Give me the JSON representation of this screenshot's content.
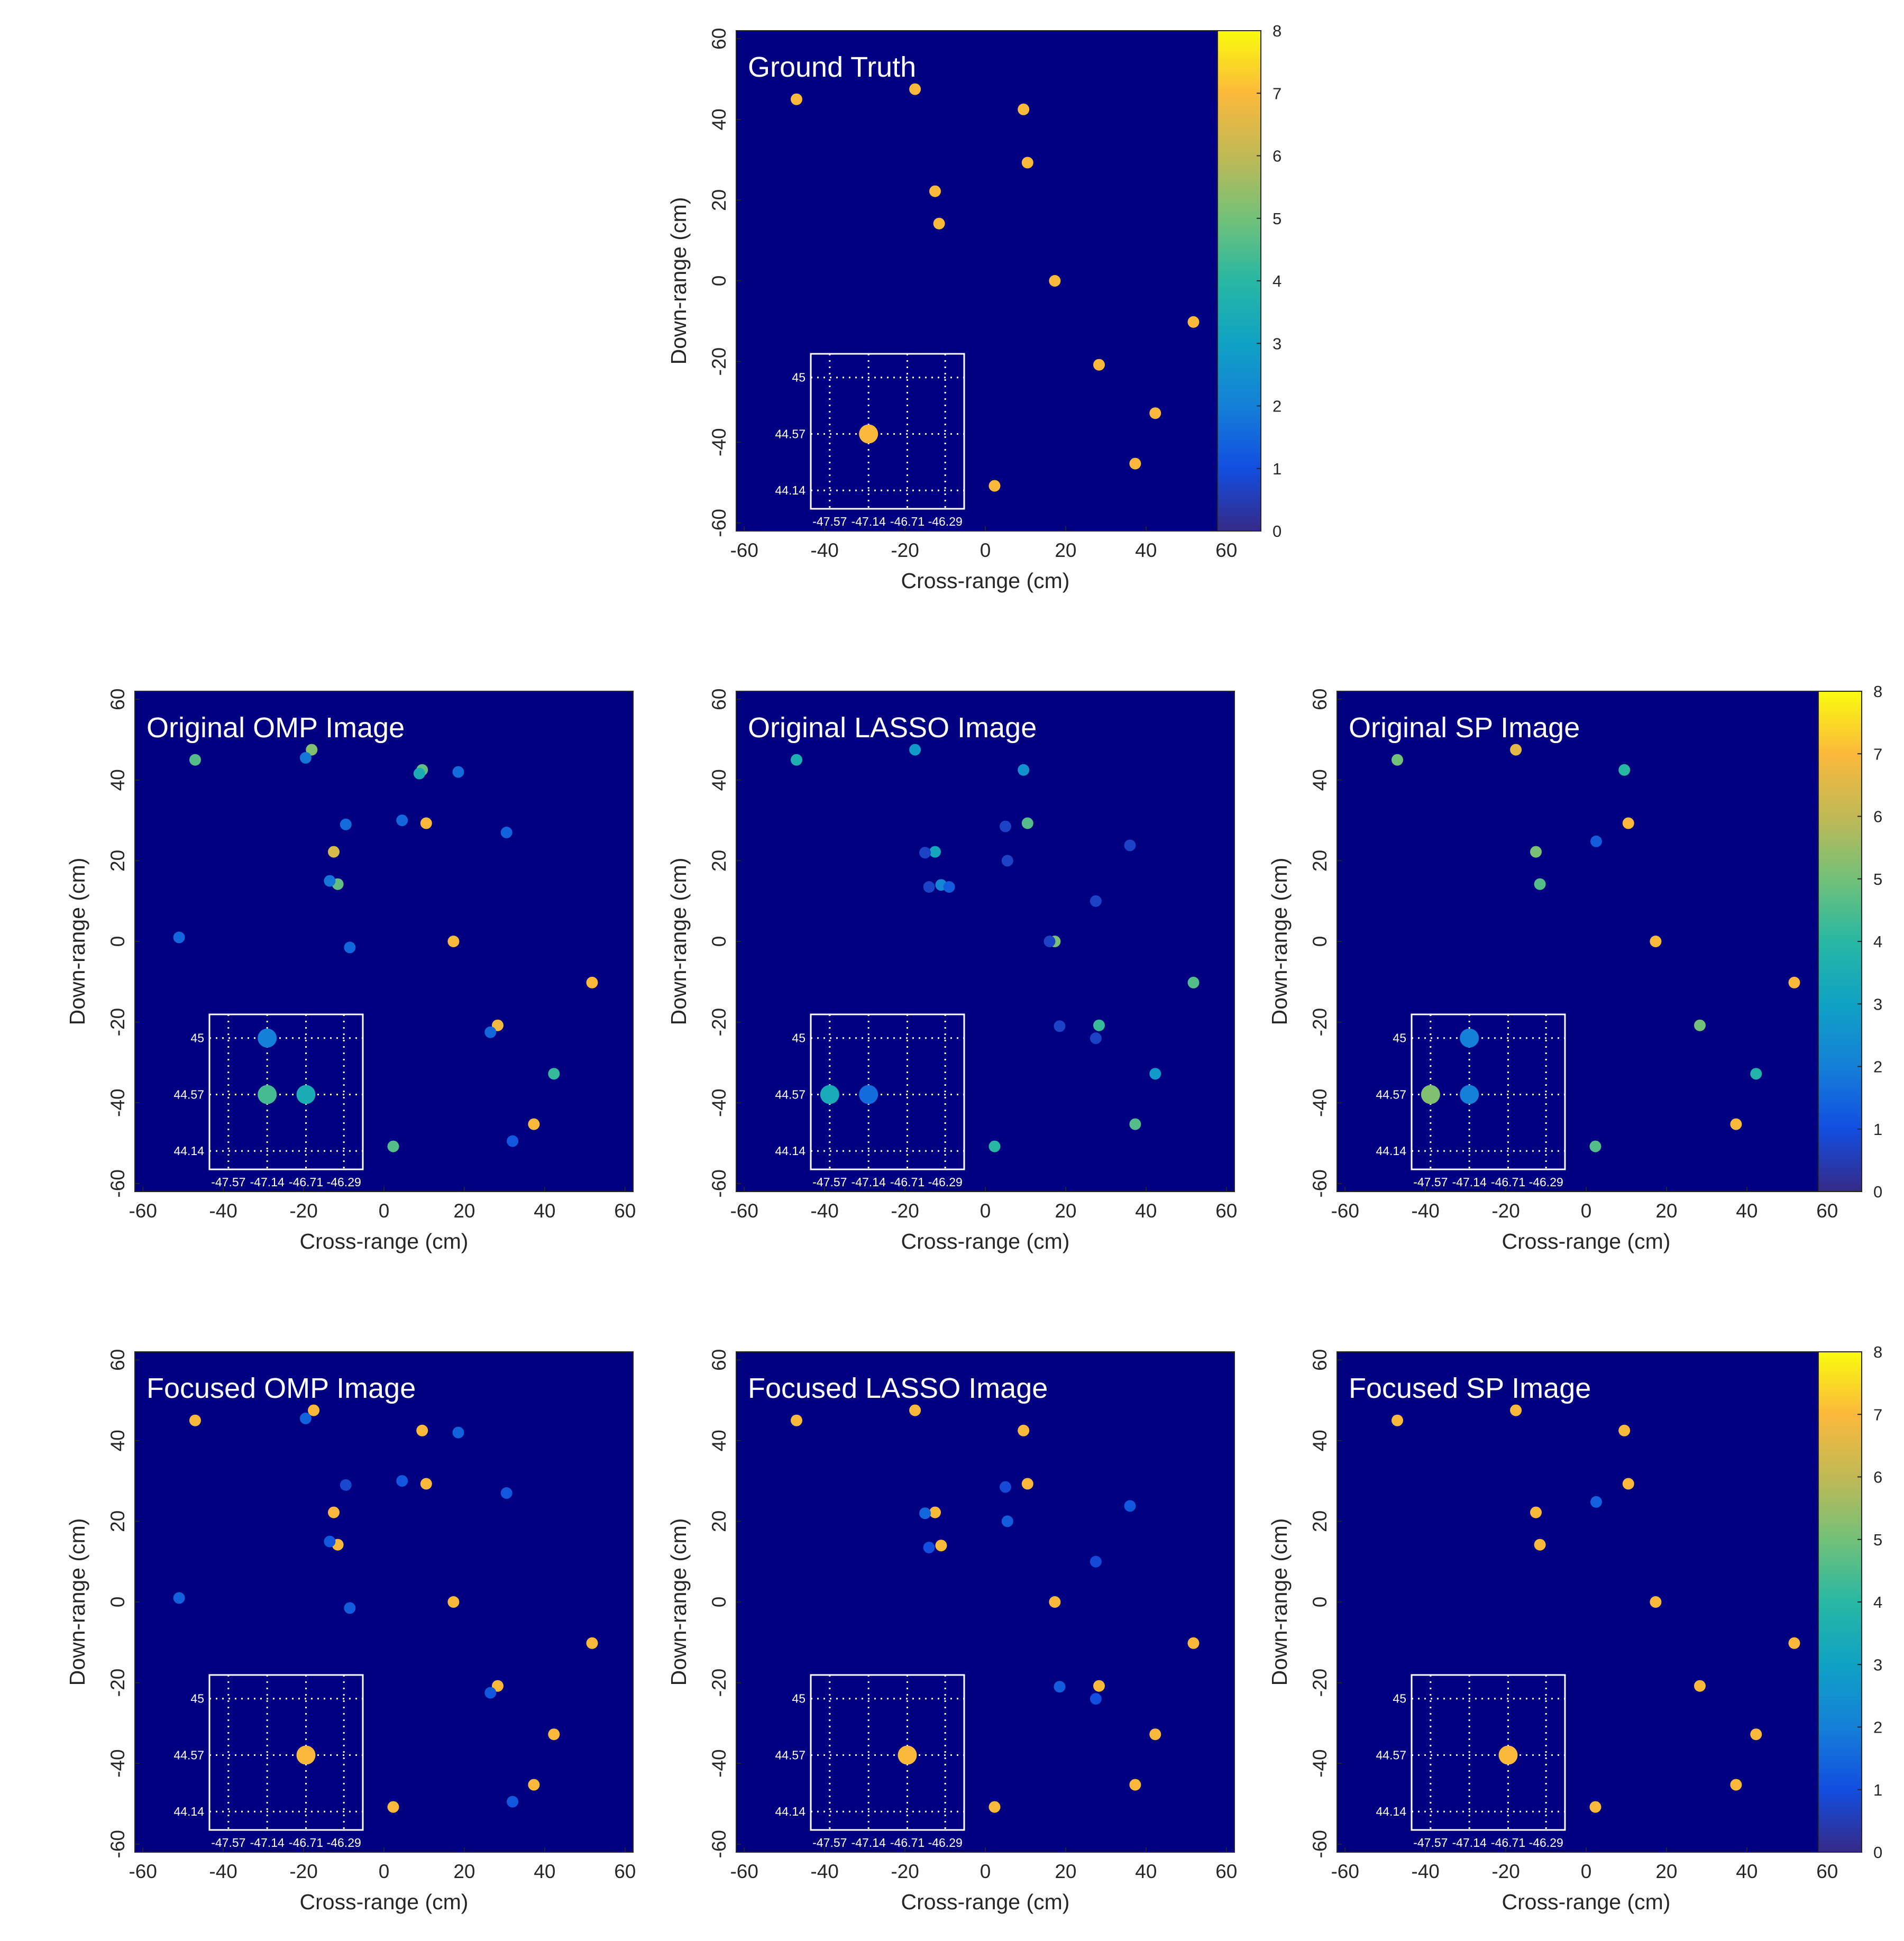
{
  "chart_data": {
    "type": "scatter",
    "xlabel": "Cross-range (cm)",
    "ylabel": "Down-range (cm)",
    "xlim": [
      -62,
      62
    ],
    "ylim": [
      -62,
      62
    ],
    "xticks": [
      "-60",
      "-40",
      "-20",
      "0",
      "20",
      "40",
      "60"
    ],
    "yticks": [
      "-60",
      "-40",
      "-20",
      "0",
      "20",
      "40",
      "60"
    ],
    "colorbar": {
      "range": [
        0,
        8
      ],
      "ticks": [
        "0",
        "1",
        "2",
        "3",
        "4",
        "5",
        "6",
        "7",
        "8"
      ],
      "colormap": "parula"
    },
    "inset": {
      "xticks": [
        "-47.57",
        "-47.14",
        "-46.71",
        "-46.29"
      ],
      "yticks": [
        "45",
        "44.57",
        "44.14"
      ],
      "xlim": [
        -47.78,
        -46.08
      ],
      "ylim": [
        44.0,
        45.18
      ]
    },
    "panels": [
      {
        "title": "Ground Truth",
        "points": [
          [
            -47,
            45,
            7
          ],
          [
            -17.5,
            47.5,
            7
          ],
          [
            9.5,
            42.5,
            7
          ],
          [
            10.5,
            29.3,
            7
          ],
          [
            -12.5,
            22.2,
            7
          ],
          [
            -11.5,
            14.2,
            7
          ],
          [
            17.3,
            0,
            7
          ],
          [
            51.8,
            -10.2,
            7
          ],
          [
            28.3,
            -20.8,
            7
          ],
          [
            42.3,
            -32.8,
            7
          ],
          [
            37.3,
            -45.3,
            7
          ],
          [
            2.3,
            -50.8,
            7
          ]
        ],
        "inset_points": [
          [
            -47.14,
            44.57,
            7
          ]
        ]
      },
      {
        "title": "Original OMP Image",
        "points": [
          [
            -47,
            45,
            4.6
          ],
          [
            -18,
            47.5,
            5.2
          ],
          [
            -19.5,
            45.5,
            1.8
          ],
          [
            9.5,
            42.5,
            4.8
          ],
          [
            8.8,
            41.6,
            3.5
          ],
          [
            18.5,
            42,
            1.6
          ],
          [
            -9.5,
            29,
            1.6
          ],
          [
            4.5,
            30,
            1.5
          ],
          [
            10.5,
            29.3,
            7
          ],
          [
            30.5,
            27,
            1.4
          ],
          [
            -12.5,
            22.2,
            6.4
          ],
          [
            -11.5,
            14.2,
            4.8
          ],
          [
            -13.5,
            15,
            1.8
          ],
          [
            -51,
            1,
            1.5
          ],
          [
            -8.5,
            -1.5,
            1.5
          ],
          [
            17.3,
            0,
            7
          ],
          [
            51.8,
            -10.2,
            7
          ],
          [
            28.3,
            -20.8,
            6.8
          ],
          [
            26.5,
            -22.5,
            1.5
          ],
          [
            42.3,
            -32.8,
            4.2
          ],
          [
            37.3,
            -45.3,
            7
          ],
          [
            2.3,
            -50.8,
            4.6
          ],
          [
            32,
            -49.5,
            1.2
          ]
        ],
        "inset_points": [
          [
            -47.14,
            45,
            2.0
          ],
          [
            -47.14,
            44.57,
            4.4
          ],
          [
            -46.71,
            44.57,
            3.5
          ]
        ]
      },
      {
        "title": "Original LASSO Image",
        "points": [
          [
            -47,
            45,
            3.6
          ],
          [
            -17.5,
            47.5,
            2.8
          ],
          [
            9.5,
            42.5,
            2.5
          ],
          [
            10.5,
            29.3,
            4.6
          ],
          [
            5,
            28.5,
            0.7
          ],
          [
            36,
            23.8,
            0.7
          ],
          [
            -12.5,
            22.2,
            3.2
          ],
          [
            -15,
            22,
            0.7
          ],
          [
            5.5,
            20,
            0.7
          ],
          [
            -11,
            14,
            2.2
          ],
          [
            -14,
            13.5,
            0.7
          ],
          [
            -9,
            13.5,
            1.3
          ],
          [
            27.5,
            10,
            0.7
          ],
          [
            17.3,
            0,
            5.1
          ],
          [
            16,
            0,
            0.7
          ],
          [
            51.8,
            -10.2,
            4.6
          ],
          [
            18.5,
            -21,
            0.7
          ],
          [
            28.3,
            -20.8,
            4.2
          ],
          [
            27.5,
            -24,
            0.7
          ],
          [
            42.3,
            -32.8,
            2.8
          ],
          [
            37.3,
            -45.3,
            4.6
          ],
          [
            2.3,
            -50.8,
            4.0
          ]
        ],
        "inset_points": [
          [
            -47.57,
            44.57,
            3.4
          ],
          [
            -47.14,
            44.57,
            1.6
          ]
        ]
      },
      {
        "title": "Original SP Image",
        "points": [
          [
            -47,
            45,
            5.0
          ],
          [
            -17.5,
            47.5,
            6.6
          ],
          [
            9.5,
            42.5,
            4.0
          ],
          [
            10.5,
            29.3,
            7
          ],
          [
            2.5,
            24.8,
            1.3
          ],
          [
            -12.5,
            22.2,
            5.1
          ],
          [
            -11.5,
            14.2,
            4.6
          ],
          [
            17.3,
            0,
            7
          ],
          [
            51.8,
            -10.2,
            7
          ],
          [
            28.3,
            -20.8,
            5.0
          ],
          [
            42.3,
            -32.8,
            3.8
          ],
          [
            37.3,
            -45.3,
            7
          ],
          [
            2.3,
            -50.8,
            4.6
          ]
        ],
        "inset_points": [
          [
            -47.14,
            45,
            2.0
          ],
          [
            -47.57,
            44.57,
            5.2
          ],
          [
            -47.14,
            44.57,
            2.0
          ]
        ]
      },
      {
        "title": "Focused OMP Image",
        "points": [
          [
            -47,
            45,
            7
          ],
          [
            -17.5,
            47.5,
            7
          ],
          [
            -19.5,
            45.5,
            1.4
          ],
          [
            9.5,
            42.5,
            7
          ],
          [
            18.5,
            42,
            1.4
          ],
          [
            -9.5,
            29,
            0.8
          ],
          [
            4.5,
            30,
            1.2
          ],
          [
            10.5,
            29.3,
            7
          ],
          [
            30.5,
            27,
            1.2
          ],
          [
            -12.5,
            22.2,
            7
          ],
          [
            -11.5,
            14.2,
            7
          ],
          [
            -13.5,
            15,
            1.2
          ],
          [
            -51,
            1,
            1.4
          ],
          [
            -8.5,
            -1.5,
            1.3
          ],
          [
            17.3,
            0,
            7
          ],
          [
            51.8,
            -10.2,
            7
          ],
          [
            28.3,
            -20.8,
            7
          ],
          [
            26.5,
            -22.5,
            1.2
          ],
          [
            42.3,
            -32.8,
            7
          ],
          [
            37.3,
            -45.3,
            7
          ],
          [
            2.3,
            -50.8,
            7
          ],
          [
            32,
            -49.5,
            1.2
          ]
        ],
        "inset_points": [
          [
            -46.71,
            44.57,
            7
          ]
        ]
      },
      {
        "title": "Focused LASSO Image",
        "points": [
          [
            -47,
            45,
            7
          ],
          [
            -17.5,
            47.5,
            7
          ],
          [
            9.5,
            42.5,
            7
          ],
          [
            10.5,
            29.3,
            7
          ],
          [
            5,
            28.5,
            0.9
          ],
          [
            36,
            23.8,
            1.2
          ],
          [
            -12.5,
            22.2,
            7
          ],
          [
            -15,
            22,
            1.5
          ],
          [
            5.5,
            20,
            1.3
          ],
          [
            -11,
            14,
            7
          ],
          [
            -14,
            13.5,
            1.0
          ],
          [
            27.5,
            10,
            0.9
          ],
          [
            17.3,
            0,
            7
          ],
          [
            51.8,
            -10.2,
            7
          ],
          [
            18.5,
            -21,
            1.3
          ],
          [
            28.3,
            -20.8,
            7
          ],
          [
            27.5,
            -24,
            1.0
          ],
          [
            42.3,
            -32.8,
            7
          ],
          [
            37.3,
            -45.3,
            7
          ],
          [
            2.3,
            -50.8,
            7
          ]
        ],
        "inset_points": [
          [
            -46.71,
            44.57,
            7
          ]
        ]
      },
      {
        "title": "Focused SP Image",
        "points": [
          [
            -47,
            45,
            7
          ],
          [
            -17.5,
            47.5,
            7
          ],
          [
            9.5,
            42.5,
            7
          ],
          [
            10.5,
            29.3,
            7
          ],
          [
            2.5,
            24.8,
            1.4
          ],
          [
            -12.5,
            22.2,
            7
          ],
          [
            -11.5,
            14.2,
            7
          ],
          [
            17.3,
            0,
            7
          ],
          [
            51.8,
            -10.2,
            7
          ],
          [
            28.3,
            -20.8,
            7
          ],
          [
            42.3,
            -32.8,
            7
          ],
          [
            37.3,
            -45.3,
            7
          ],
          [
            2.3,
            -50.8,
            7
          ]
        ],
        "inset_points": [
          [
            -46.71,
            44.57,
            7
          ]
        ]
      }
    ]
  }
}
